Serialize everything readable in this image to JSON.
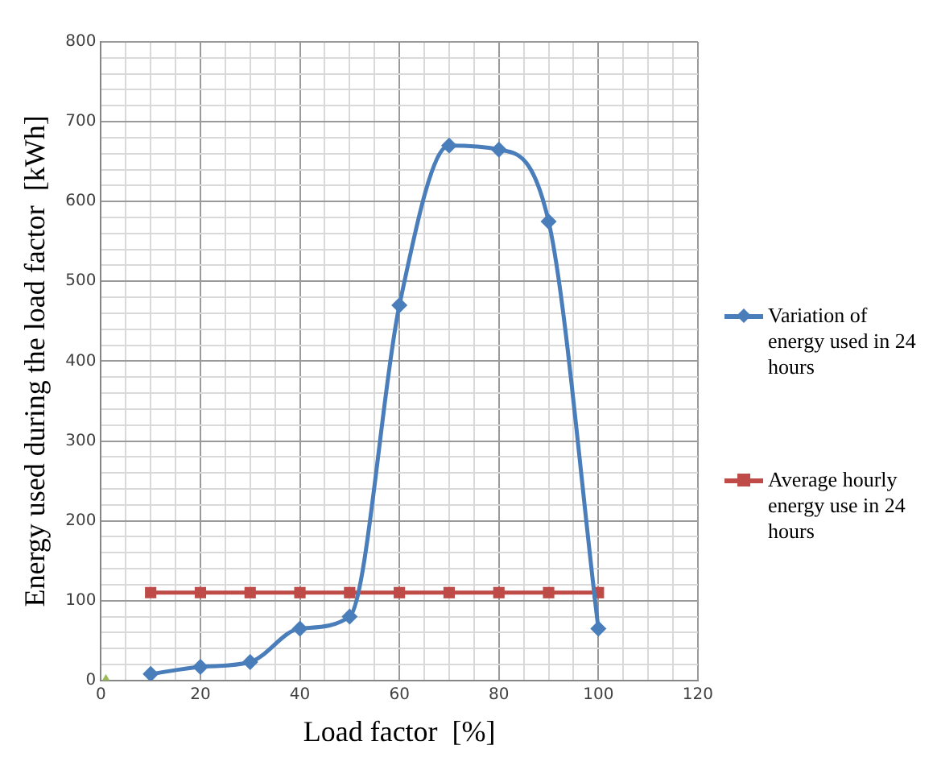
{
  "chart_data": {
    "type": "line",
    "xlabel": "Load factor  [%]",
    "ylabel": "Energy used during the load factor  [kWh]",
    "xlim": [
      0,
      120
    ],
    "xticks": [
      0,
      {
        "value": 5,
        "label": null
      },
      {
        "value": 10,
        "label": null
      },
      {
        "value": 15,
        "label": null
      },
      20,
      {
        "value": 25,
        "label": null
      },
      {
        "value": 30,
        "label": null
      },
      {
        "value": 35,
        "label": null
      },
      40,
      {
        "value": 45,
        "label": null
      },
      {
        "value": 50,
        "label": null
      },
      {
        "value": 55,
        "label": null
      },
      60,
      {
        "value": 65,
        "label": null
      },
      {
        "value": 70,
        "label": null
      },
      {
        "value": 75,
        "label": null
      },
      80,
      {
        "value": 85,
        "label": null
      },
      {
        "value": 90,
        "label": null
      },
      {
        "value": 95,
        "label": null
      },
      100,
      {
        "value": 105,
        "label": null
      },
      {
        "value": 110,
        "label": null
      },
      {
        "value": 115,
        "label": null
      },
      120
    ],
    "ylim": [
      0,
      800
    ],
    "yticks": [
      0,
      {
        "value": 20,
        "label": null
      },
      {
        "value": 40,
        "label": null
      },
      {
        "value": 60,
        "label": null
      },
      {
        "value": 80,
        "label": null
      },
      100,
      {
        "value": 120,
        "label": null
      },
      {
        "value": 140,
        "label": null
      },
      {
        "value": 160,
        "label": null
      },
      {
        "value": 180,
        "label": null
      },
      200,
      {
        "value": 220,
        "label": null
      },
      {
        "value": 240,
        "label": null
      },
      {
        "value": 260,
        "label": null
      },
      {
        "value": 280,
        "label": null
      },
      300,
      {
        "value": 320,
        "label": null
      },
      {
        "value": 340,
        "label": null
      },
      {
        "value": 360,
        "label": null
      },
      {
        "value": 380,
        "label": null
      },
      400,
      {
        "value": 420,
        "label": null
      },
      {
        "value": 440,
        "label": null
      },
      {
        "value": 460,
        "label": null
      },
      {
        "value": 480,
        "label": null
      },
      500,
      {
        "value": 520,
        "label": null
      },
      {
        "value": 540,
        "label": null
      },
      {
        "value": 560,
        "label": null
      },
      {
        "value": 580,
        "label": null
      },
      600,
      {
        "value": 620,
        "label": null
      },
      {
        "value": 640,
        "label": null
      },
      {
        "value": 660,
        "label": null
      },
      {
        "value": 680,
        "label": null
      },
      700,
      {
        "value": 720,
        "label": null
      },
      {
        "value": 740,
        "label": null
      },
      {
        "value": 760,
        "label": null
      },
      {
        "value": 780,
        "label": null
      },
      800
    ],
    "grid": true,
    "legend": "right",
    "series": [
      {
        "name": "Variation of energy used in 24 hours",
        "color": "#4a7ebb",
        "marker": "diamond",
        "x": [
          10,
          20,
          30,
          40,
          50,
          60,
          70,
          80,
          90,
          100
        ],
        "values": [
          8,
          17,
          23,
          65,
          80,
          470,
          670,
          665,
          575,
          65
        ]
      },
      {
        "name": "Average hourly energy use in 24 hours",
        "color": "#be4b48",
        "marker": "square",
        "x": [
          10,
          20,
          30,
          40,
          50,
          60,
          70,
          80,
          90,
          100
        ],
        "values": [
          110,
          110,
          110,
          110,
          110,
          110,
          110,
          110,
          110,
          110
        ]
      },
      {
        "type": "scatter",
        "color": "#9bbb59",
        "marker": "triangle",
        "x": [
          1
        ],
        "values": [
          0
        ]
      }
    ]
  }
}
